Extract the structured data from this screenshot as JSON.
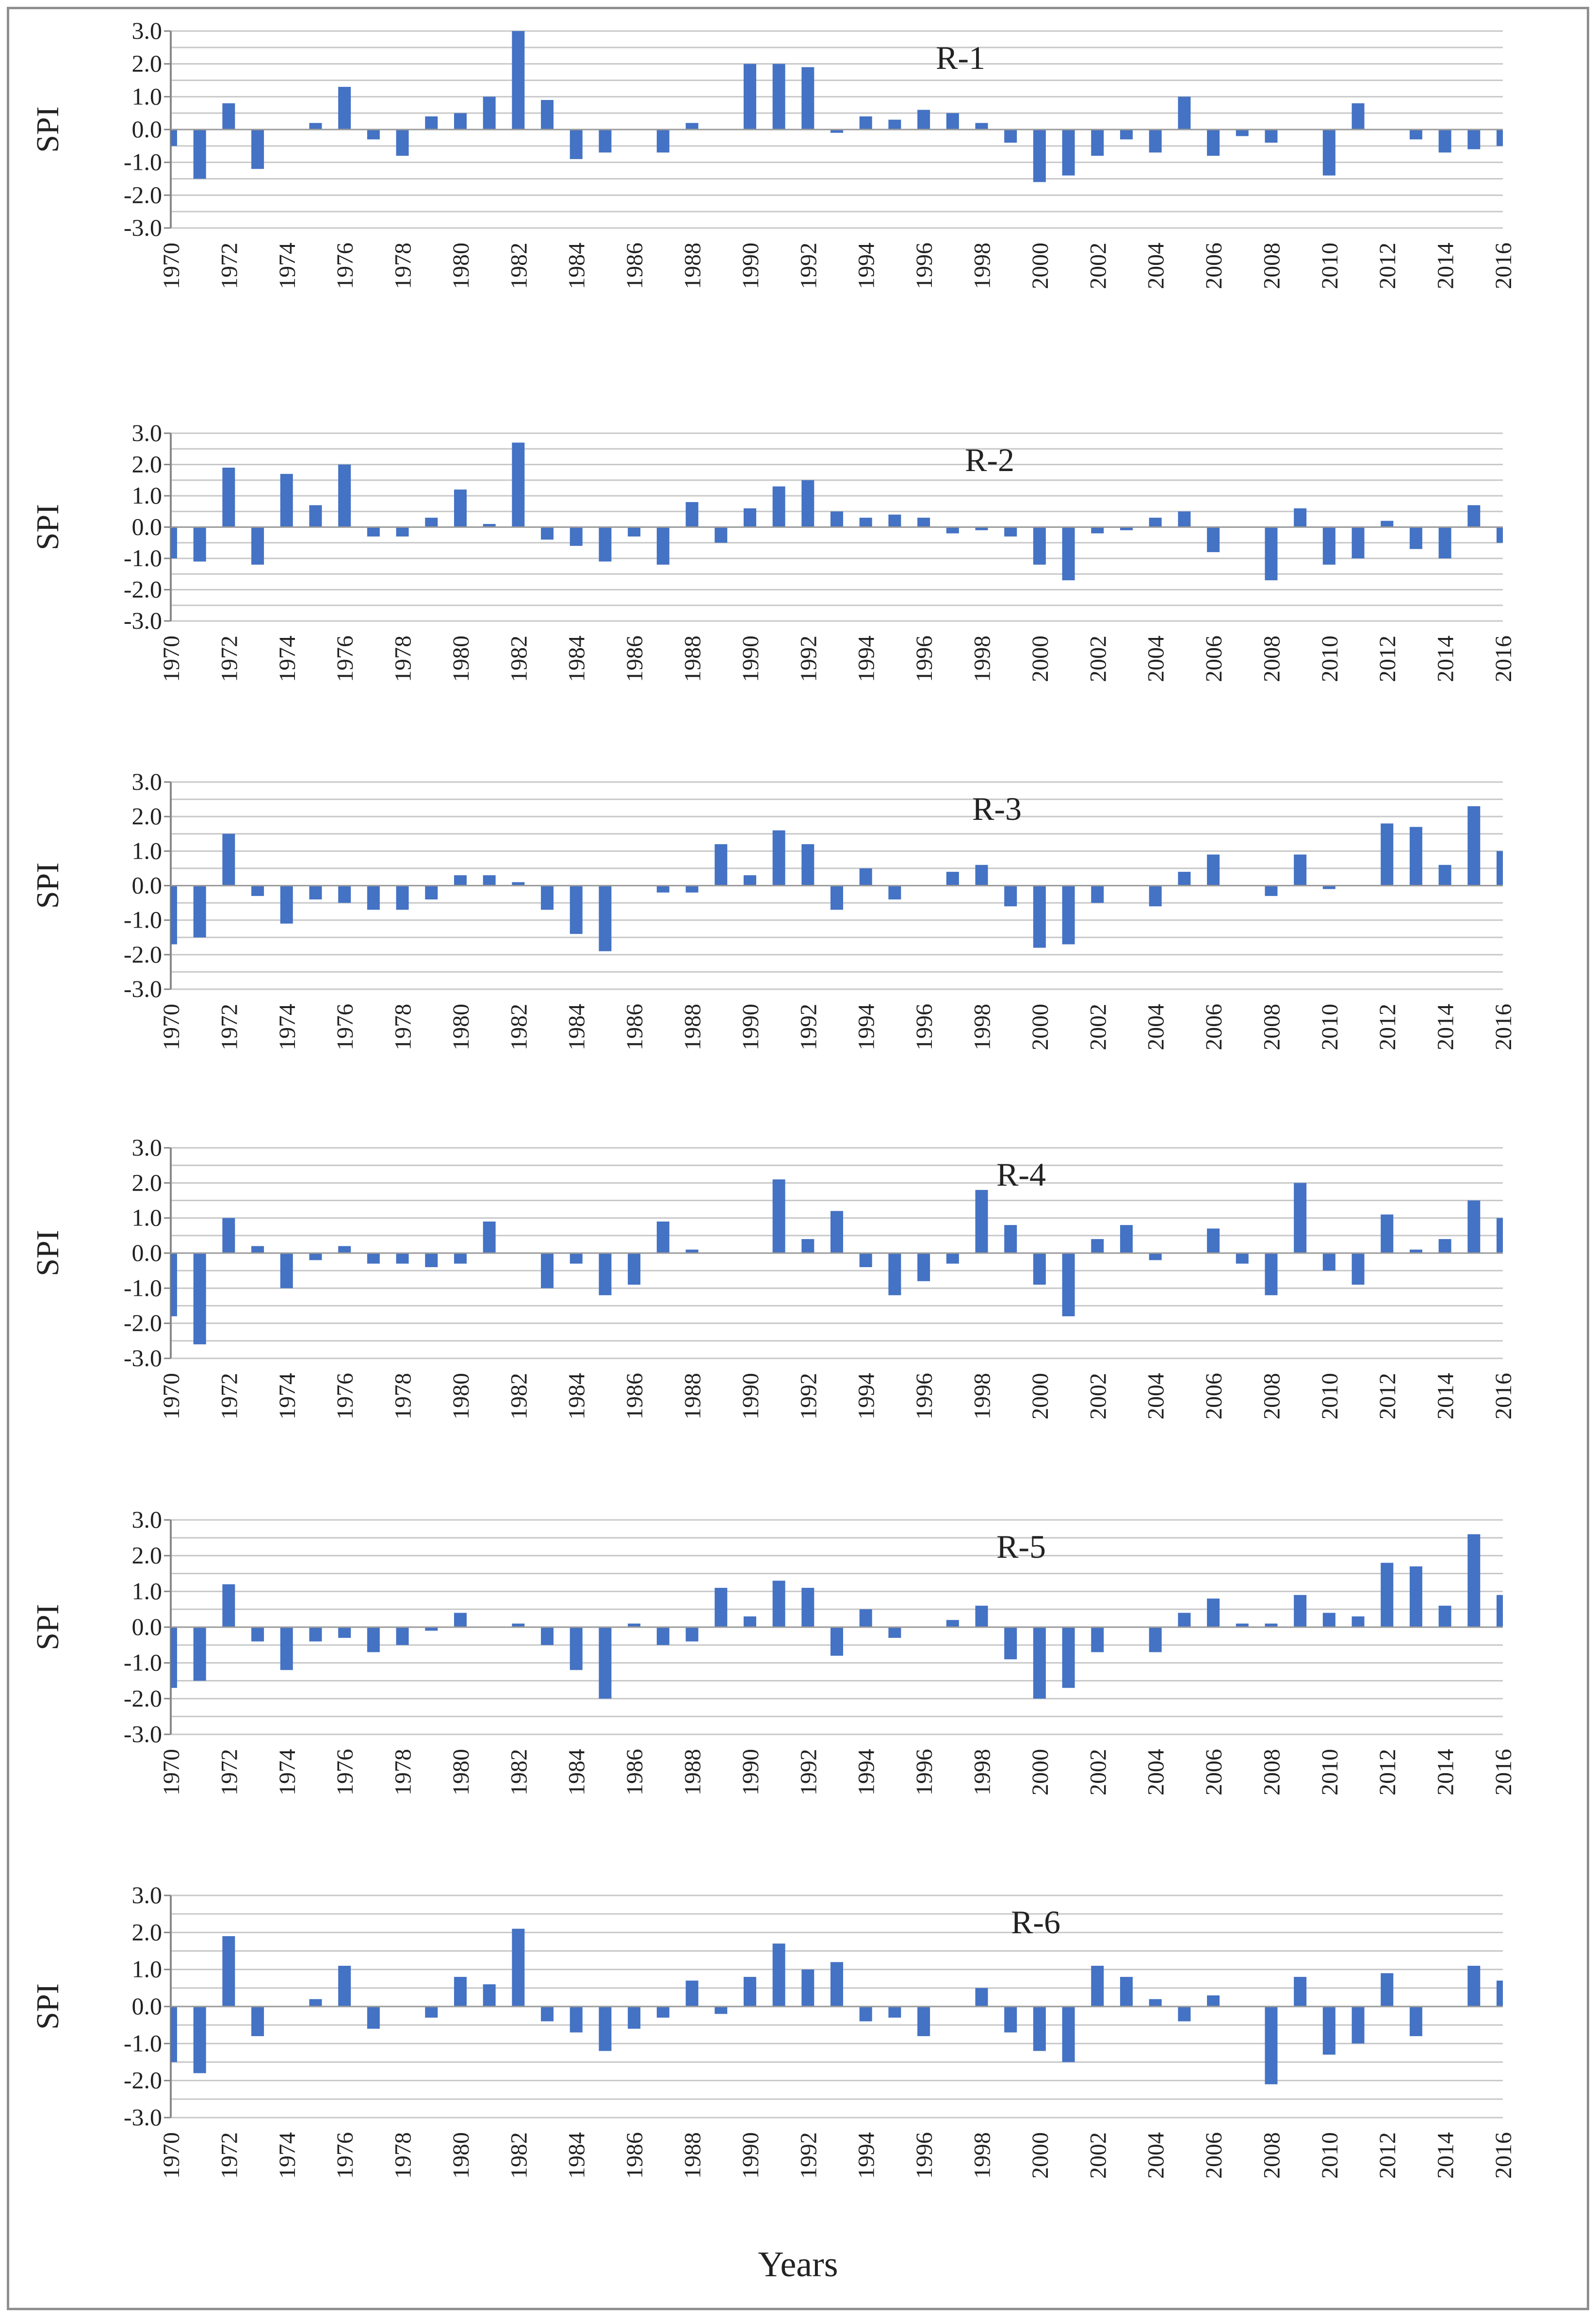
{
  "x_axis_title": "Years",
  "y_axis_title": "SPI",
  "series_color": "#4472C4",
  "chart_data": [
    {
      "type": "bar",
      "title": "R-1",
      "ylabel": "SPI",
      "ylim": [
        -3,
        3
      ],
      "yticks": [
        "3.0",
        "2.0",
        "1.0",
        "0.0",
        "-1.0",
        "-2.0",
        "-3.0"
      ],
      "grid": true,
      "categories": [
        "1970",
        "1971",
        "1972",
        "1973",
        "1974",
        "1975",
        "1976",
        "1977",
        "1978",
        "1979",
        "1980",
        "1981",
        "1982",
        "1983",
        "1984",
        "1985",
        "1986",
        "1987",
        "1988",
        "1989",
        "1990",
        "1991",
        "1992",
        "1993",
        "1994",
        "1995",
        "1996",
        "1997",
        "1998",
        "1999",
        "2000",
        "2001",
        "2002",
        "2003",
        "2004",
        "2005",
        "2006",
        "2007",
        "2008",
        "2009",
        "2010",
        "2011",
        "2012",
        "2013",
        "2014",
        "2015",
        "2016"
      ],
      "values": [
        -0.5,
        -1.5,
        0.8,
        -1.2,
        0.0,
        0.2,
        1.3,
        -0.3,
        -0.8,
        0.4,
        0.5,
        1.0,
        3.0,
        0.9,
        -0.9,
        -0.7,
        0.0,
        -0.7,
        0.2,
        0.0,
        2.0,
        2.0,
        1.9,
        -0.1,
        0.4,
        0.3,
        0.6,
        0.5,
        0.2,
        -0.4,
        -1.6,
        -1.4,
        -0.8,
        -0.3,
        -0.7,
        1.0,
        -0.8,
        -0.2,
        -0.4,
        0.0,
        -1.4,
        0.8,
        0.0,
        -0.3,
        -0.7,
        -0.6,
        -0.5
      ]
    },
    {
      "type": "bar",
      "title": "R-2",
      "ylabel": "SPI",
      "ylim": [
        -3,
        3
      ],
      "yticks": [
        "3.0",
        "2.0",
        "1.0",
        "0.0",
        "-1.0",
        "-2.0",
        "-3.0"
      ],
      "grid": true,
      "categories": [
        "1970",
        "1971",
        "1972",
        "1973",
        "1974",
        "1975",
        "1976",
        "1977",
        "1978",
        "1979",
        "1980",
        "1981",
        "1982",
        "1983",
        "1984",
        "1985",
        "1986",
        "1987",
        "1988",
        "1989",
        "1990",
        "1991",
        "1992",
        "1993",
        "1994",
        "1995",
        "1996",
        "1997",
        "1998",
        "1999",
        "2000",
        "2001",
        "2002",
        "2003",
        "2004",
        "2005",
        "2006",
        "2007",
        "2008",
        "2009",
        "2010",
        "2011",
        "2012",
        "2013",
        "2014",
        "2015",
        "2016"
      ],
      "values": [
        -1.0,
        -1.1,
        1.9,
        -1.2,
        1.7,
        0.7,
        2.0,
        -0.3,
        -0.3,
        0.3,
        1.2,
        0.1,
        2.7,
        -0.4,
        -0.6,
        -1.1,
        -0.3,
        -1.2,
        0.8,
        -0.5,
        0.6,
        1.3,
        1.5,
        0.5,
        0.3,
        0.4,
        0.3,
        -0.2,
        -0.1,
        -0.3,
        -1.2,
        -1.7,
        -0.2,
        -0.1,
        0.3,
        0.5,
        -0.8,
        0.0,
        -1.7,
        0.6,
        -1.2,
        -1.0,
        0.2,
        -0.7,
        -1.0,
        0.7,
        -0.5
      ]
    },
    {
      "type": "bar",
      "title": "R-3",
      "ylabel": "SPI",
      "ylim": [
        -3,
        3
      ],
      "yticks": [
        "3.0",
        "2.0",
        "1.0",
        "0.0",
        "-1.0",
        "-2.0",
        "-3.0"
      ],
      "grid": true,
      "categories": [
        "1970",
        "1971",
        "1972",
        "1973",
        "1974",
        "1975",
        "1976",
        "1977",
        "1978",
        "1979",
        "1980",
        "1981",
        "1982",
        "1983",
        "1984",
        "1985",
        "1986",
        "1987",
        "1988",
        "1989",
        "1990",
        "1991",
        "1992",
        "1993",
        "1994",
        "1995",
        "1996",
        "1997",
        "1998",
        "1999",
        "2000",
        "2001",
        "2002",
        "2003",
        "2004",
        "2005",
        "2006",
        "2007",
        "2008",
        "2009",
        "2010",
        "2011",
        "2012",
        "2013",
        "2014",
        "2015",
        "2016"
      ],
      "values": [
        -1.7,
        -1.5,
        1.5,
        -0.3,
        -1.1,
        -0.4,
        -0.5,
        -0.7,
        -0.7,
        -0.4,
        0.3,
        0.3,
        0.1,
        -0.7,
        -1.4,
        -1.9,
        0.0,
        -0.2,
        -0.2,
        1.2,
        0.3,
        1.6,
        1.2,
        -0.7,
        0.5,
        -0.4,
        0.0,
        0.4,
        0.6,
        -0.6,
        -1.8,
        -1.7,
        -0.5,
        0.0,
        -0.6,
        0.4,
        0.9,
        0.0,
        -0.3,
        0.9,
        -0.1,
        0.0,
        1.8,
        1.7,
        0.6,
        2.3,
        1.0
      ]
    },
    {
      "type": "bar",
      "title": "R-4",
      "ylabel": "SPI",
      "ylim": [
        -3,
        3
      ],
      "yticks": [
        "3.0",
        "2.0",
        "1.0",
        "0.0",
        "-1.0",
        "-2.0",
        "-3.0"
      ],
      "grid": true,
      "categories": [
        "1970",
        "1971",
        "1972",
        "1973",
        "1974",
        "1975",
        "1976",
        "1977",
        "1978",
        "1979",
        "1980",
        "1981",
        "1982",
        "1983",
        "1984",
        "1985",
        "1986",
        "1987",
        "1988",
        "1989",
        "1990",
        "1991",
        "1992",
        "1993",
        "1994",
        "1995",
        "1996",
        "1997",
        "1998",
        "1999",
        "2000",
        "2001",
        "2002",
        "2003",
        "2004",
        "2005",
        "2006",
        "2007",
        "2008",
        "2009",
        "2010",
        "2011",
        "2012",
        "2013",
        "2014",
        "2015",
        "2016"
      ],
      "values": [
        -1.8,
        -2.6,
        1.0,
        0.2,
        -1.0,
        -0.2,
        0.2,
        -0.3,
        -0.3,
        -0.4,
        -0.3,
        0.9,
        0.0,
        -1.0,
        -0.3,
        -1.2,
        -0.9,
        0.9,
        0.1,
        0.0,
        0.0,
        2.1,
        0.4,
        1.2,
        -0.4,
        -1.2,
        -0.8,
        -0.3,
        1.8,
        0.8,
        -0.9,
        -1.8,
        0.4,
        0.8,
        -0.2,
        0.0,
        0.7,
        -0.3,
        -1.2,
        2.0,
        -0.5,
        -0.9,
        1.1,
        0.1,
        0.4,
        1.5,
        1.0
      ]
    },
    {
      "type": "bar",
      "title": "R-5",
      "ylabel": "SPI",
      "ylim": [
        -3,
        3
      ],
      "yticks": [
        "3.0",
        "2.0",
        "1.0",
        "0.0",
        "-1.0",
        "-2.0",
        "-3.0"
      ],
      "grid": true,
      "categories": [
        "1970",
        "1971",
        "1972",
        "1973",
        "1974",
        "1975",
        "1976",
        "1977",
        "1978",
        "1979",
        "1980",
        "1981",
        "1982",
        "1983",
        "1984",
        "1985",
        "1986",
        "1987",
        "1988",
        "1989",
        "1990",
        "1991",
        "1992",
        "1993",
        "1994",
        "1995",
        "1996",
        "1997",
        "1998",
        "1999",
        "2000",
        "2001",
        "2002",
        "2003",
        "2004",
        "2005",
        "2006",
        "2007",
        "2008",
        "2009",
        "2010",
        "2011",
        "2012",
        "2013",
        "2014",
        "2015",
        "2016"
      ],
      "values": [
        -1.7,
        -1.5,
        1.2,
        -0.4,
        -1.2,
        -0.4,
        -0.3,
        -0.7,
        -0.5,
        -0.1,
        0.4,
        0.0,
        0.1,
        -0.5,
        -1.2,
        -2.0,
        0.1,
        -0.5,
        -0.4,
        1.1,
        0.3,
        1.3,
        1.1,
        -0.8,
        0.5,
        -0.3,
        0.0,
        0.2,
        0.6,
        -0.9,
        -2.0,
        -1.7,
        -0.7,
        0.0,
        -0.7,
        0.4,
        0.8,
        0.1,
        0.1,
        0.9,
        0.4,
        0.3,
        1.8,
        1.7,
        0.6,
        2.6,
        0.9
      ]
    },
    {
      "type": "bar",
      "title": "R-6",
      "ylabel": "SPI",
      "ylim": [
        -3,
        3
      ],
      "yticks": [
        "3.0",
        "2.0",
        "1.0",
        "0.0",
        "-1.0",
        "-2.0",
        "-3.0"
      ],
      "grid": true,
      "categories": [
        "1970",
        "1971",
        "1972",
        "1973",
        "1974",
        "1975",
        "1976",
        "1977",
        "1978",
        "1979",
        "1980",
        "1981",
        "1982",
        "1983",
        "1984",
        "1985",
        "1986",
        "1987",
        "1988",
        "1989",
        "1990",
        "1991",
        "1992",
        "1993",
        "1994",
        "1995",
        "1996",
        "1997",
        "1998",
        "1999",
        "2000",
        "2001",
        "2002",
        "2003",
        "2004",
        "2005",
        "2006",
        "2007",
        "2008",
        "2009",
        "2010",
        "2011",
        "2012",
        "2013",
        "2014",
        "2015",
        "2016"
      ],
      "values": [
        -1.5,
        -1.8,
        1.9,
        -0.8,
        0.0,
        0.2,
        1.1,
        -0.6,
        0.0,
        -0.3,
        0.8,
        0.6,
        2.1,
        -0.4,
        -0.7,
        -1.2,
        -0.6,
        -0.3,
        0.7,
        -0.2,
        0.8,
        1.7,
        1.0,
        1.2,
        -0.4,
        -0.3,
        -0.8,
        0.0,
        0.5,
        -0.7,
        -1.2,
        -1.5,
        1.1,
        0.8,
        0.2,
        -0.4,
        0.3,
        0.0,
        -2.1,
        0.8,
        -1.3,
        -1.0,
        0.9,
        -0.8,
        0.0,
        1.1,
        0.7
      ]
    }
  ]
}
